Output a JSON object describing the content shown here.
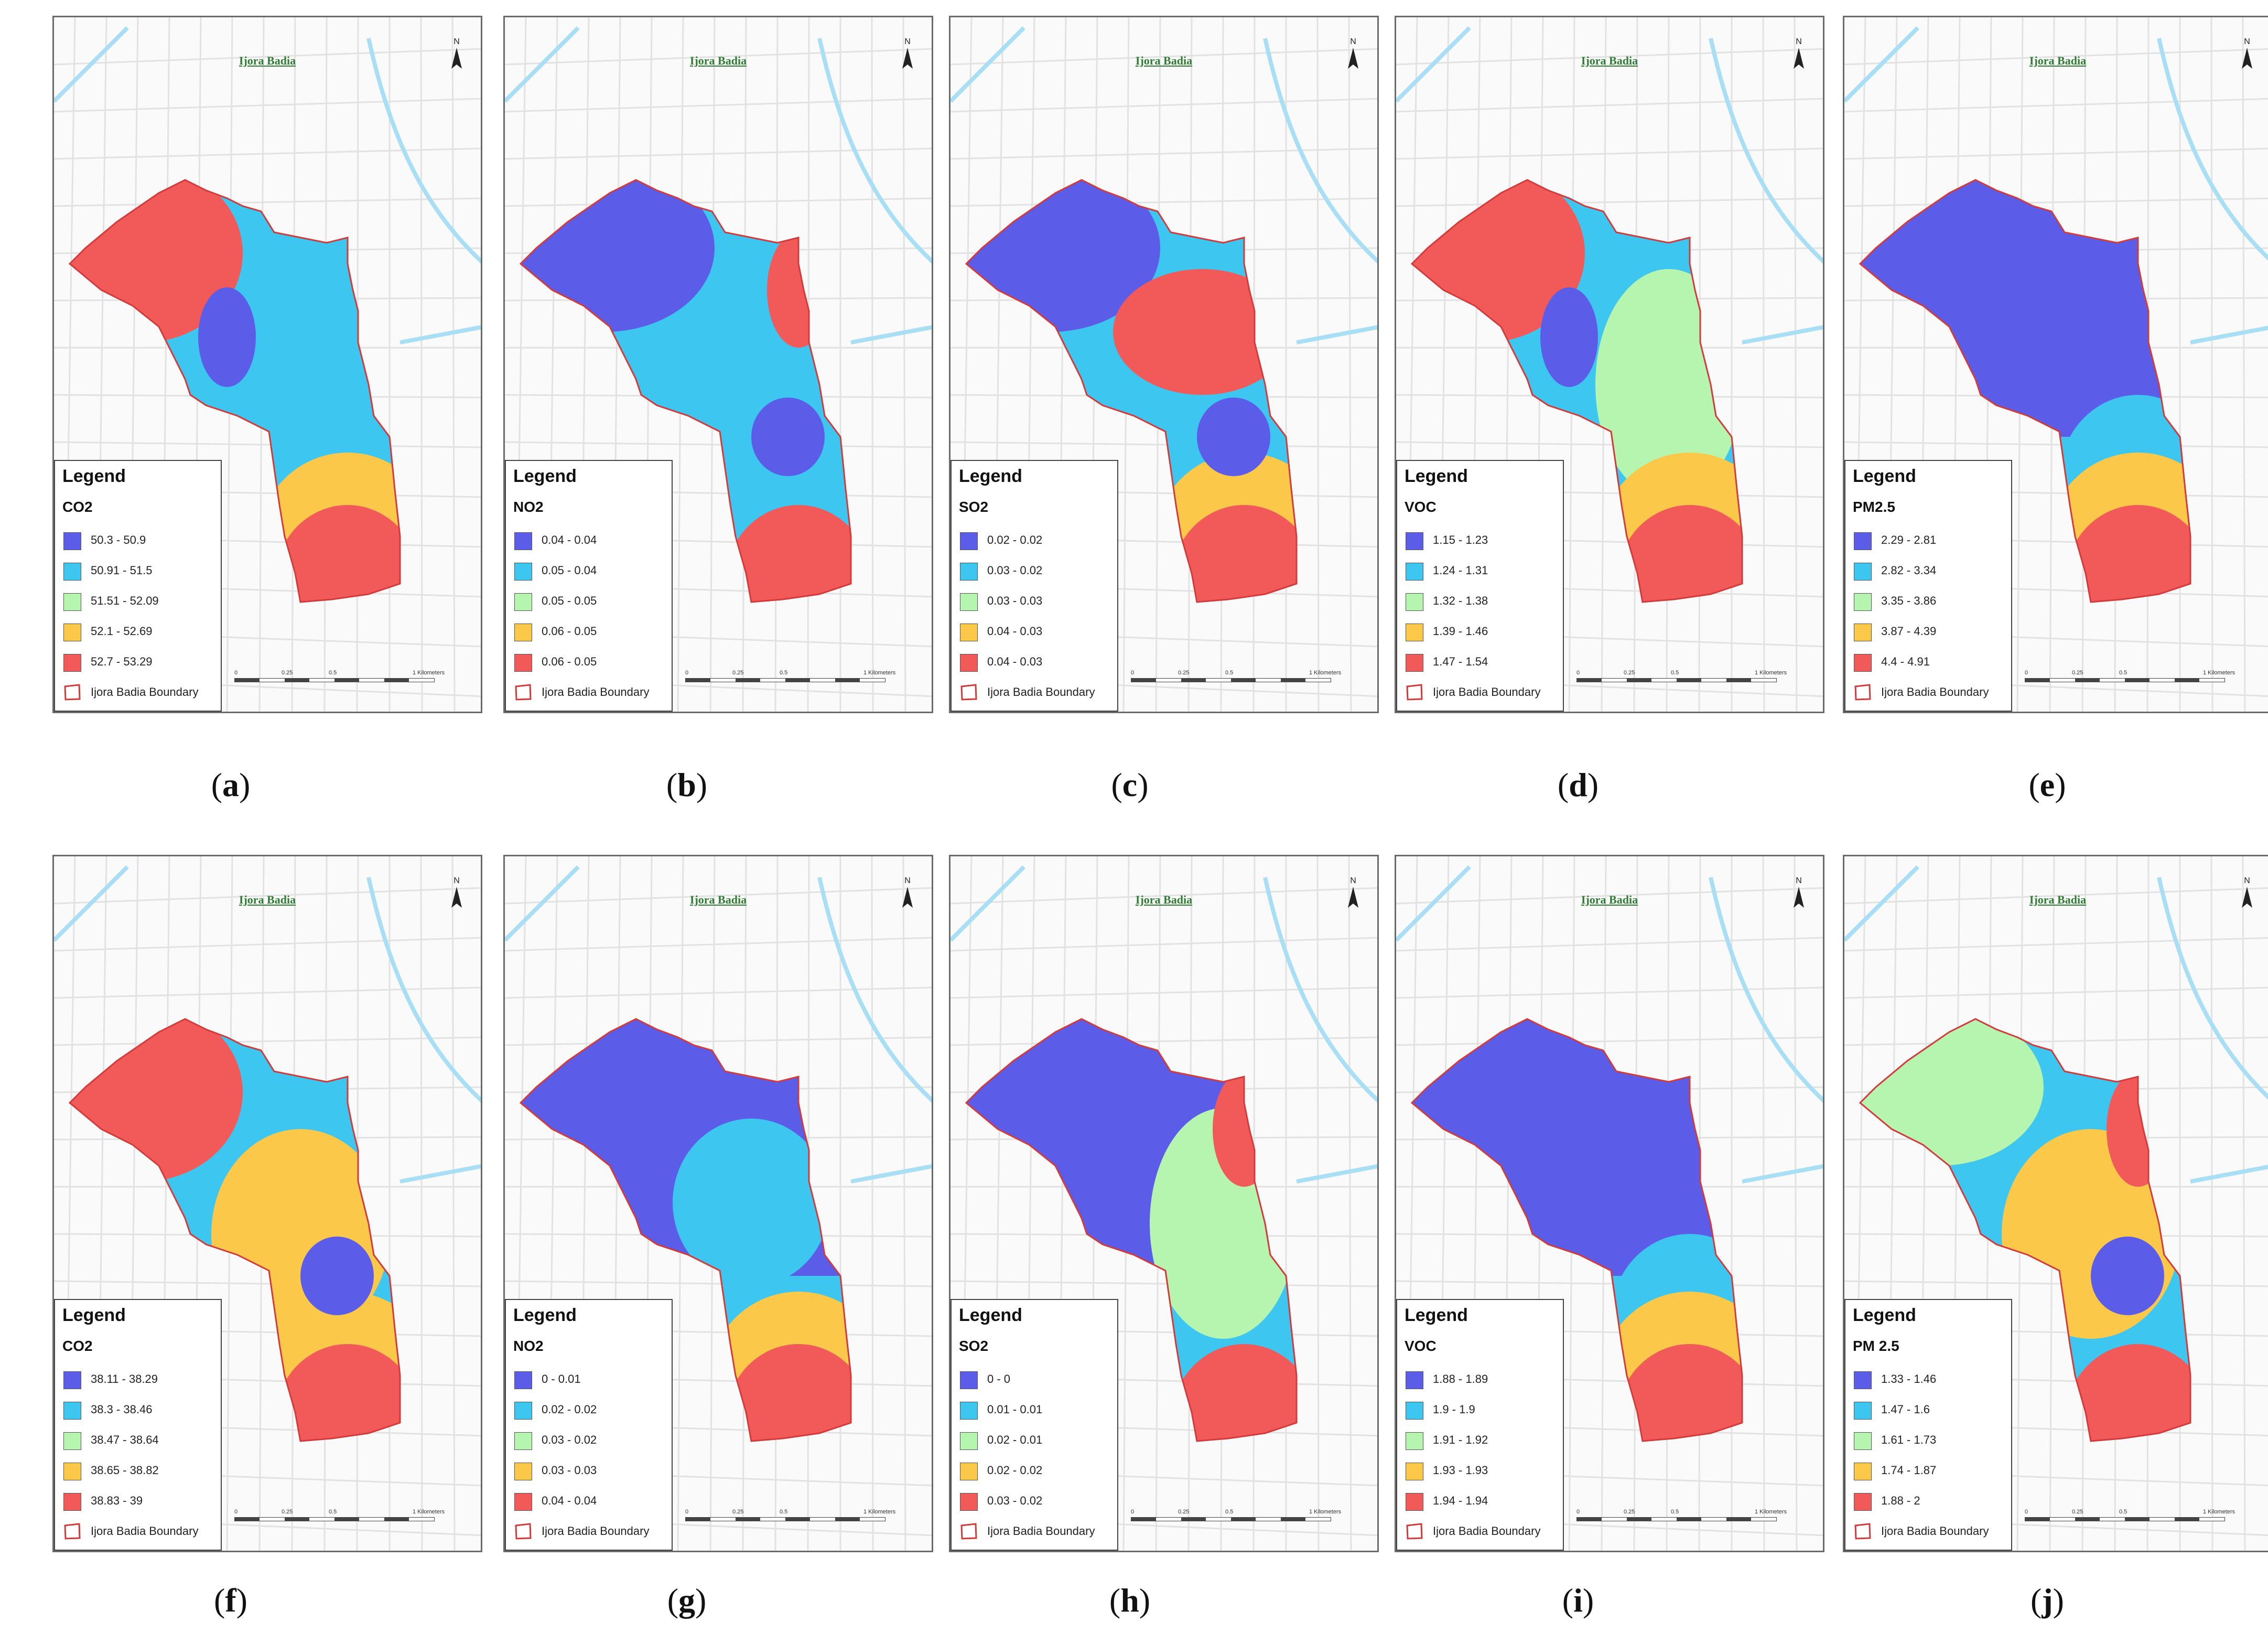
{
  "map_title": "Ijora Badia",
  "north_label": "N",
  "legend_title": "Legend",
  "boundary_label": "Ijora Badia Boundary",
  "scale_labels": [
    "0",
    "0.25",
    "0.5",
    "1 Kilometers"
  ],
  "class_colors": [
    "#5b5ce8",
    "#3cc6f0",
    "#b6f5b0",
    "#fbc84a",
    "#f25a5a"
  ],
  "boundary_color": "#d33a3a",
  "panels": [
    {
      "id": "a",
      "caption_open": "(",
      "caption_letter": "a",
      "caption_close": ")",
      "variable": "CO2",
      "classes": [
        "50.3 - 50.9",
        "50.91 - 51.5",
        "51.51 - 52.09",
        "52.1 - 52.69",
        "52.7 - 53.29"
      ],
      "pattern": [
        "red-west",
        "blue-center",
        "cyan-mid",
        "yellow-south",
        "red-south"
      ]
    },
    {
      "id": "b",
      "caption_open": "(",
      "caption_letter": "b",
      "caption_close": ")",
      "variable": "NO2",
      "classes": [
        "0.04 - 0.04",
        "0.05 - 0.04",
        "0.05 - 0.05",
        "0.06 - 0.05",
        "0.06 - 0.05"
      ],
      "pattern": [
        "blue-west",
        "blue-southmid",
        "cyan-mid",
        "red-east",
        "red-south"
      ]
    },
    {
      "id": "c",
      "caption_open": "(",
      "caption_letter": "c",
      "caption_close": ")",
      "variable": "SO2",
      "classes": [
        "0.02 - 0.02",
        "0.03 - 0.02",
        "0.03 - 0.03",
        "0.04 - 0.03",
        "0.04 - 0.03"
      ],
      "pattern": [
        "blue-west",
        "blue-southmid",
        "red-mid",
        "yellow-south",
        "red-south"
      ]
    },
    {
      "id": "d",
      "caption_open": "(",
      "caption_letter": "d",
      "caption_close": ")",
      "variable": "VOC",
      "classes": [
        "1.15 - 1.23",
        "1.24 - 1.31",
        "1.32 - 1.38",
        "1.39 - 1.46",
        "1.47 - 1.54"
      ],
      "pattern": [
        "red-west",
        "blue-center",
        "green-mid",
        "yellow-south",
        "red-south"
      ]
    },
    {
      "id": "e",
      "caption_open": "(",
      "caption_letter": "e",
      "caption_close": ")",
      "variable": "PM2.5",
      "classes": [
        "2.29 - 2.81",
        "2.82 - 3.34",
        "3.35 - 3.86",
        "3.87 - 4.39",
        "4.4 - 4.91"
      ],
      "pattern": [
        "blue-west",
        "blue-all",
        "cyan-south",
        "yellow-south",
        "red-south"
      ]
    },
    {
      "id": "f",
      "caption_open": "(",
      "caption_letter": "f",
      "caption_close": ")",
      "variable": "CO2",
      "classes": [
        "38.11 - 38.29",
        "38.3 - 38.46",
        "38.47 - 38.64",
        "38.65 - 38.82",
        "38.83 - 39"
      ],
      "pattern": [
        "red-west",
        "blue-southmid",
        "yellow-mid",
        "yellow-south",
        "red-south"
      ]
    },
    {
      "id": "g",
      "caption_open": "(",
      "caption_letter": "g",
      "caption_close": ")",
      "variable": "NO2",
      "classes": [
        "0 - 0.01",
        "0.02 - 0.02",
        "0.03 - 0.02",
        "0.03 - 0.03",
        "0.04 - 0.04"
      ],
      "pattern": [
        "blue-west",
        "blue-all",
        "cyan-mid",
        "yellow-south",
        "red-south"
      ]
    },
    {
      "id": "h",
      "caption_open": "(",
      "caption_letter": "h",
      "caption_close": ")",
      "variable": "SO2",
      "classes": [
        "0 - 0",
        "0.01 - 0.01",
        "0.02 - 0.01",
        "0.02 - 0.02",
        "0.03 - 0.02"
      ],
      "pattern": [
        "blue-west",
        "blue-all",
        "green-mid",
        "red-east",
        "red-south"
      ]
    },
    {
      "id": "i",
      "caption_open": "(",
      "caption_letter": "i",
      "caption_close": ")",
      "variable": "VOC",
      "classes": [
        "1.88 - 1.89",
        "1.9 - 1.9",
        "1.91 - 1.92",
        "1.93 - 1.93",
        "1.94 - 1.94"
      ],
      "pattern": [
        "green-west",
        "blue-all",
        "cyan-south",
        "yellow-south",
        "red-south"
      ]
    },
    {
      "id": "j",
      "caption_open": "(",
      "caption_letter": "j",
      "caption_close": ")",
      "variable": "PM 2.5",
      "classes": [
        "1.33 - 1.46",
        "1.47 - 1.6",
        "1.61 - 1.73",
        "1.74 - 1.87",
        "1.88 - 2"
      ],
      "pattern": [
        "green-west",
        "blue-southmid",
        "yellow-mid",
        "red-east",
        "red-south"
      ]
    }
  ]
}
